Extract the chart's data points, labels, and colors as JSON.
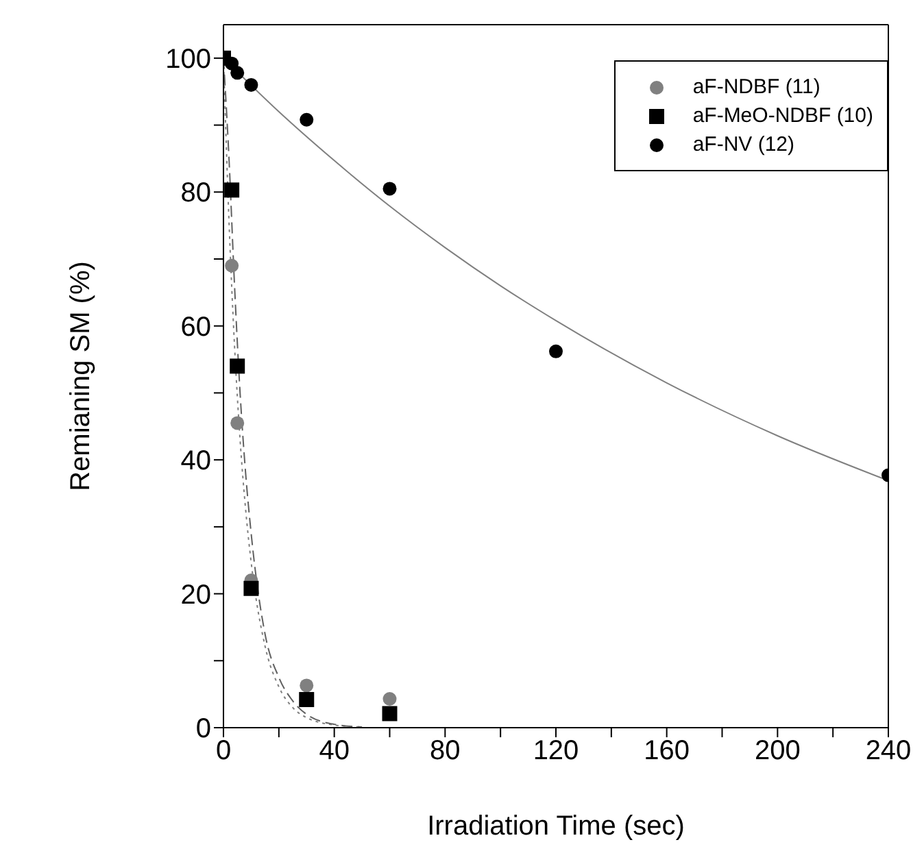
{
  "chart_data": {
    "type": "scatter",
    "xlabel": "Irradiation Time (sec)",
    "ylabel": "Remianing SM (%)",
    "xlim": [
      0,
      240
    ],
    "ylim": [
      0,
      105
    ],
    "xticks": [
      0,
      {
        "value": 20,
        "label": null
      },
      40,
      {
        "value": 60,
        "label": null
      },
      80,
      {
        "value": 100,
        "label": null
      },
      120,
      {
        "value": 140,
        "label": null
      },
      160,
      {
        "value": 180,
        "label": null
      },
      200,
      {
        "value": 220,
        "label": null
      },
      240
    ],
    "yticks": [
      0,
      {
        "value": 10,
        "label": null
      },
      20,
      {
        "value": 30,
        "label": null
      },
      40,
      {
        "value": 50,
        "label": null
      },
      60,
      {
        "value": 70,
        "label": null
      },
      80,
      {
        "value": 90,
        "label": null
      },
      100
    ],
    "grid": false,
    "legend": "top right",
    "series": [
      {
        "name": "aF-NDBF (11)",
        "marker": "circle",
        "color": "#808080",
        "x": [
          3,
          5,
          10,
          30,
          60
        ],
        "values": [
          69,
          45.5,
          22,
          6.3,
          4.3
        ]
      },
      {
        "name": "aF-MeO-NDBF (10)",
        "marker": "square",
        "color": "#000000",
        "x": [
          0,
          3,
          5,
          10,
          30,
          60
        ],
        "values": [
          100,
          80.3,
          54,
          20.8,
          4.2,
          2.1
        ]
      },
      {
        "name": "aF-NV (12)",
        "marker": "circle",
        "color": "#000000",
        "x": [
          3,
          5,
          10,
          30,
          60,
          120,
          240
        ],
        "values": [
          99.2,
          97.8,
          96,
          90.8,
          80.5,
          56.2,
          37.7
        ]
      },
      {
        "type": "line",
        "line_style": "dotted",
        "marker": "none",
        "color": "#808080",
        "x": [
          0,
          2,
          4,
          6,
          8,
          10,
          15,
          20,
          25,
          30,
          40,
          50
        ],
        "values": [
          100,
          75.6,
          57,
          43,
          32.6,
          24.7,
          12.2,
          6.1,
          3,
          1.5,
          0.4,
          0.1
        ]
      },
      {
        "type": "line",
        "line_style": "dashed",
        "marker": "none",
        "color": "#606060",
        "x": [
          0,
          2,
          4,
          6,
          8,
          10,
          15,
          20,
          25,
          30,
          40,
          50
        ],
        "values": [
          100,
          85,
          66,
          50,
          38,
          29,
          14,
          7.5,
          4,
          2,
          0.5,
          0.1
        ]
      },
      {
        "type": "line",
        "line_style": "solid",
        "marker": "none",
        "color": "#808080",
        "x": [
          0,
          20,
          40,
          60,
          80,
          100,
          120,
          160,
          200,
          240
        ],
        "values": [
          100,
          92,
          84.7,
          77.9,
          71.7,
          66,
          60.8,
          51.5,
          43.6,
          36.9
        ]
      }
    ]
  }
}
